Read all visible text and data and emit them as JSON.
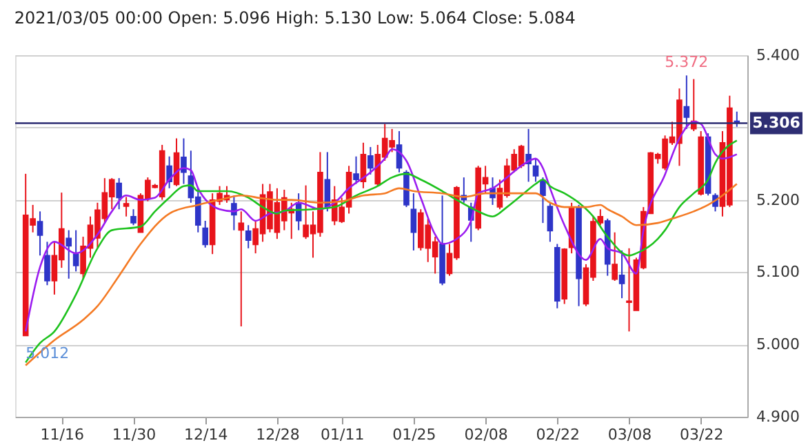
{
  "chart_data": {
    "type": "candlestick",
    "title": "2021/03/05 00:00   Open: 5.096  High: 5.130  Low: 5.064  Close: 5.084",
    "categories": [
      null,
      null,
      null,
      null,
      null,
      "11/16",
      null,
      null,
      null,
      null,
      null,
      null,
      null,
      null,
      null,
      "11/30",
      null,
      null,
      null,
      null,
      null,
      null,
      null,
      null,
      null,
      "12/14",
      null,
      null,
      null,
      null,
      null,
      null,
      null,
      null,
      null,
      "12/28",
      null,
      null,
      null,
      null,
      null,
      null,
      null,
      null,
      "01/11",
      null,
      null,
      null,
      null,
      null,
      null,
      null,
      null,
      null,
      "01/25",
      null,
      null,
      null,
      null,
      null,
      null,
      null,
      null,
      null,
      "02/08",
      null,
      null,
      null,
      null,
      null,
      null,
      null,
      null,
      null,
      "02/22",
      null,
      null,
      null,
      null,
      null,
      null,
      null,
      null,
      null,
      "03/08",
      null,
      null,
      null,
      null,
      null,
      null,
      null,
      null,
      null,
      "03/22",
      null,
      null,
      null,
      null,
      null
    ],
    "ohlc": [
      [
        5.012,
        5.236,
        5.012,
        5.179
      ],
      [
        5.165,
        5.193,
        5.155,
        5.174
      ],
      [
        5.17,
        5.184,
        5.123,
        5.151
      ],
      [
        5.123,
        5.142,
        5.082,
        5.088
      ],
      [
        5.088,
        5.142,
        5.069,
        5.123
      ],
      [
        5.117,
        5.21,
        5.106,
        5.16
      ],
      [
        5.147,
        5.158,
        5.091,
        5.136
      ],
      [
        5.125,
        5.158,
        5.101,
        5.109
      ],
      [
        5.098,
        5.149,
        5.091,
        5.136
      ],
      [
        5.133,
        5.177,
        5.12,
        5.165
      ],
      [
        5.147,
        5.196,
        5.133,
        5.186
      ],
      [
        5.174,
        5.23,
        5.168,
        5.21
      ],
      [
        5.204,
        5.23,
        5.187,
        5.228
      ],
      [
        5.223,
        5.23,
        5.187,
        5.203
      ],
      [
        5.191,
        5.204,
        5.177,
        5.195
      ],
      [
        5.177,
        5.187,
        5.165,
        5.168
      ],
      [
        5.155,
        5.209,
        5.155,
        5.206
      ],
      [
        5.202,
        5.231,
        5.198,
        5.227
      ],
      [
        5.217,
        5.222,
        5.216,
        5.22
      ],
      [
        5.204,
        5.276,
        5.2,
        5.268
      ],
      [
        5.247,
        5.26,
        5.216,
        5.225
      ],
      [
        5.221,
        5.285,
        5.219,
        5.265
      ],
      [
        5.259,
        5.285,
        5.222,
        5.238
      ],
      [
        5.233,
        5.268,
        5.196,
        5.203
      ],
      [
        5.204,
        5.216,
        5.155,
        5.165
      ],
      [
        5.161,
        5.171,
        5.134,
        5.138
      ],
      [
        5.138,
        5.209,
        5.125,
        5.2
      ],
      [
        5.198,
        5.219,
        5.193,
        5.209
      ],
      [
        5.2,
        5.219,
        5.196,
        5.206
      ],
      [
        5.195,
        5.206,
        5.158,
        5.179
      ],
      [
        5.158,
        5.184,
        5.025,
        5.168
      ],
      [
        5.157,
        5.165,
        5.133,
        5.144
      ],
      [
        5.138,
        5.171,
        5.126,
        5.16
      ],
      [
        5.153,
        5.222,
        5.142,
        5.207
      ],
      [
        5.16,
        5.222,
        5.155,
        5.211
      ],
      [
        5.155,
        5.216,
        5.146,
        5.196
      ],
      [
        5.171,
        5.214,
        5.158,
        5.203
      ],
      [
        5.182,
        5.196,
        5.146,
        5.187
      ],
      [
        5.196,
        5.209,
        5.158,
        5.171
      ],
      [
        5.149,
        5.22,
        5.146,
        5.165
      ],
      [
        5.153,
        5.184,
        5.12,
        5.165
      ],
      [
        5.155,
        5.266,
        5.149,
        5.238
      ],
      [
        5.228,
        5.266,
        5.184,
        5.19
      ],
      [
        5.171,
        5.219,
        5.165,
        5.2
      ],
      [
        5.17,
        5.203,
        5.168,
        5.19
      ],
      [
        5.19,
        5.247,
        5.181,
        5.238
      ],
      [
        5.236,
        5.26,
        5.222,
        5.228
      ],
      [
        5.225,
        5.279,
        5.216,
        5.263
      ],
      [
        5.261,
        5.273,
        5.235,
        5.244
      ],
      [
        5.222,
        5.276,
        5.219,
        5.263
      ],
      [
        5.259,
        5.305,
        5.254,
        5.285
      ],
      [
        5.273,
        5.298,
        5.266,
        5.282
      ],
      [
        5.276,
        5.295,
        5.238,
        5.244
      ],
      [
        5.238,
        5.241,
        5.19,
        5.193
      ],
      [
        5.187,
        5.209,
        5.13,
        5.155
      ],
      [
        5.134,
        5.187,
        5.13,
        5.182
      ],
      [
        5.133,
        5.174,
        5.114,
        5.165
      ],
      [
        5.121,
        5.149,
        5.098,
        5.142
      ],
      [
        5.139,
        5.206,
        5.082,
        5.085
      ],
      [
        5.098,
        5.139,
        5.095,
        5.126
      ],
      [
        5.12,
        5.219,
        5.117,
        5.217
      ],
      [
        5.206,
        5.231,
        5.196,
        5.2
      ],
      [
        5.19,
        5.196,
        5.142,
        5.172
      ],
      [
        5.161,
        5.247,
        5.158,
        5.244
      ],
      [
        5.222,
        5.247,
        5.209,
        5.231
      ],
      [
        5.216,
        5.231,
        5.193,
        5.203
      ],
      [
        5.19,
        5.228,
        5.187,
        5.216
      ],
      [
        5.206,
        5.257,
        5.203,
        5.247
      ],
      [
        5.241,
        5.27,
        5.238,
        5.263
      ],
      [
        5.247,
        5.276,
        5.244,
        5.274
      ],
      [
        5.263,
        5.298,
        5.225,
        5.25
      ],
      [
        5.247,
        5.257,
        5.225,
        5.233
      ],
      [
        5.227,
        5.231,
        5.168,
        5.206
      ],
      [
        5.191,
        5.196,
        5.142,
        5.157
      ],
      [
        5.134,
        5.139,
        5.05,
        5.06
      ],
      [
        5.063,
        5.133,
        5.056,
        5.132
      ],
      [
        5.134,
        5.196,
        5.126,
        5.19
      ],
      [
        5.19,
        5.193,
        5.053,
        5.091
      ],
      [
        5.056,
        5.111,
        5.053,
        5.106
      ],
      [
        5.093,
        5.177,
        5.088,
        5.17
      ],
      [
        5.168,
        5.187,
        5.165,
        5.177
      ],
      [
        5.171,
        5.174,
        5.095,
        5.111
      ],
      [
        5.09,
        5.155,
        5.088,
        5.111
      ],
      [
        5.096,
        5.13,
        5.064,
        5.084
      ],
      [
        5.058,
        5.133,
        5.018,
        5.06
      ],
      [
        5.047,
        5.12,
        5.047,
        5.117
      ],
      [
        5.106,
        5.19,
        5.104,
        5.184
      ],
      [
        5.181,
        5.266,
        5.181,
        5.265
      ],
      [
        5.257,
        5.265,
        5.25,
        5.263
      ],
      [
        5.244,
        5.289,
        5.241,
        5.284
      ],
      [
        5.279,
        5.308,
        5.276,
        5.287
      ],
      [
        5.278,
        5.354,
        5.247,
        5.338
      ],
      [
        5.329,
        5.372,
        5.298,
        5.314
      ],
      [
        5.298,
        5.367,
        5.295,
        5.309
      ],
      [
        5.208,
        5.295,
        5.206,
        5.287
      ],
      [
        5.287,
        5.292,
        5.206,
        5.209
      ],
      [
        5.206,
        5.209,
        5.184,
        5.191
      ],
      [
        5.191,
        5.295,
        5.177,
        5.279
      ],
      [
        5.193,
        5.344,
        5.19,
        5.327
      ],
      [
        5.309,
        5.322,
        5.301,
        5.306
      ]
    ],
    "colors": [
      "#e8141b",
      "#e8141b",
      "#2e35c8",
      "#2e35c8",
      "#e8141b",
      "#e8141b",
      "#2e35c8",
      "#2e35c8",
      "#e8141b",
      "#e8141b",
      "#e8141b",
      "#e8141b",
      "#e8141b",
      "#2e35c8",
      "#e8141b",
      "#2e35c8",
      "#e8141b",
      "#e8141b",
      "#e8141b",
      "#e8141b",
      "#2e35c8",
      "#e8141b",
      "#2e35c8",
      "#2e35c8",
      "#2e35c8",
      "#2e35c8",
      "#e8141b",
      "#e8141b",
      "#e8141b",
      "#2e35c8",
      "#e8141b",
      "#2e35c8",
      "#e8141b",
      "#e8141b",
      "#e8141b",
      "#e8141b",
      "#e8141b",
      "#e8141b",
      "#2e35c8",
      "#e8141b",
      "#e8141b",
      "#e8141b",
      "#2e35c8",
      "#e8141b",
      "#e8141b",
      "#e8141b",
      "#2e35c8",
      "#e8141b",
      "#2e35c8",
      "#e8141b",
      "#e8141b",
      "#e8141b",
      "#2e35c8",
      "#2e35c8",
      "#2e35c8",
      "#e8141b",
      "#e8141b",
      "#e8141b",
      "#2e35c8",
      "#e8141b",
      "#e8141b",
      "#2e35c8",
      "#2e35c8",
      "#e8141b",
      "#e8141b",
      "#2e35c8",
      "#e8141b",
      "#e8141b",
      "#e8141b",
      "#e8141b",
      "#2e35c8",
      "#2e35c8",
      "#2e35c8",
      "#2e35c8",
      "#2e35c8",
      "#e8141b",
      "#e8141b",
      "#2e35c8",
      "#e8141b",
      "#e8141b",
      "#e8141b",
      "#2e35c8",
      "#e8141b",
      "#2e35c8",
      "#e8141b",
      "#e8141b",
      "#e8141b",
      "#e8141b",
      "#e8141b",
      "#e8141b",
      "#e8141b",
      "#e8141b",
      "#2e35c8",
      "#e8141b",
      "#e8141b",
      "#2e35c8",
      "#2e35c8",
      "#e8141b",
      "#e8141b",
      "#2e35c8"
    ],
    "series": [
      {
        "type": "line",
        "color": "#9b1cf0",
        "values": [
          5.018,
          null,
          5.107,
          null,
          5.142,
          null,
          null,
          5.126,
          null,
          null,
          5.152,
          null,
          5.184,
          null,
          5.206,
          null,
          5.2,
          null,
          5.203,
          null,
          5.228,
          null,
          5.244,
          5.241,
          5.216,
          null,
          null,
          5.187,
          null,
          5.184,
          5.187,
          null,
          5.171,
          null,
          5.181,
          null,
          5.184,
          null,
          5.196,
          null,
          null,
          5.187,
          null,
          5.196,
          null,
          5.216,
          null,
          null,
          5.238,
          null,
          5.257,
          5.27,
          null,
          5.254,
          null,
          5.203,
          null,
          5.152,
          5.139,
          null,
          5.146,
          null,
          5.171,
          5.209,
          null,
          5.216,
          null,
          5.231,
          null,
          5.247,
          null,
          5.257,
          5.244,
          5.216,
          null,
          5.165,
          null,
          null,
          5.117,
          null,
          5.146,
          5.133,
          null,
          5.126,
          null,
          5.098,
          5.158,
          null,
          null,
          5.235,
          null,
          5.285,
          null,
          5.308,
          5.305,
          null,
          5.263,
          5.257,
          null,
          5.263
        ]
      },
      {
        "type": "line",
        "color": "#1ec21e",
        "values": [
          4.975,
          null,
          5.002,
          null,
          5.018,
          null,
          null,
          5.069,
          null,
          null,
          5.133,
          null,
          5.158,
          null,
          null,
          null,
          5.163,
          null,
          5.184,
          null,
          5.203,
          null,
          5.219,
          5.22,
          5.212,
          null,
          null,
          5.212,
          5.212,
          null,
          null,
          5.203,
          null,
          5.19,
          null,
          5.181,
          5.185,
          null,
          null,
          null,
          5.187,
          null,
          null,
          5.19,
          null,
          null,
          5.206,
          null,
          null,
          5.219,
          null,
          5.231,
          null,
          5.236,
          null,
          5.228,
          null,
          null,
          5.212,
          null,
          5.2,
          null,
          null,
          5.184,
          null,
          5.177,
          null,
          5.19,
          null,
          5.206,
          null,
          5.222,
          5.228,
          5.219,
          null,
          5.209,
          null,
          5.196,
          null,
          5.177,
          null,
          5.149,
          null,
          null,
          5.123,
          5.126,
          null,
          null,
          5.146,
          5.158,
          null,
          5.19,
          null,
          5.209,
          null,
          5.228,
          5.251,
          null,
          null,
          5.282
        ]
      },
      {
        "type": "line",
        "color": "#f47a24",
        "values": [
          4.971,
          null,
          null,
          null,
          5.006,
          null,
          null,
          null,
          5.034,
          null,
          5.053,
          null,
          null,
          5.095,
          null,
          null,
          5.139,
          null,
          null,
          null,
          5.181,
          null,
          null,
          null,
          5.193,
          null,
          null,
          5.2,
          null,
          null,
          5.206,
          null,
          null,
          5.202,
          null,
          5.2,
          null,
          5.2,
          null,
          null,
          null,
          5.196,
          null,
          null,
          5.198,
          null,
          null,
          5.206,
          null,
          null,
          5.209,
          null,
          5.216,
          null,
          5.212,
          null,
          null,
          null,
          5.209,
          null,
          null,
          5.204,
          null,
          null,
          5.209,
          null,
          null,
          null,
          5.209,
          null,
          null,
          5.209,
          null,
          5.196,
          null,
          5.19,
          null,
          null,
          5.19,
          null,
          5.193,
          5.187,
          null,
          5.177,
          null,
          5.165,
          null,
          null,
          5.168,
          null,
          5.174,
          null,
          null,
          5.184,
          null,
          5.193,
          null,
          5.206,
          null,
          5.222
        ]
      }
    ],
    "ylim": [
      4.9,
      5.4
    ],
    "yticks": [
      {
        "value": 4.9,
        "label": "4.900"
      },
      {
        "value": 5.0,
        "label": "5.000"
      },
      {
        "value": 5.1,
        "label": "5.100"
      },
      {
        "value": 5.2,
        "label": "5.200"
      },
      {
        "value": 5.3,
        "label": null
      },
      {
        "value": 5.4,
        "label": "5.400"
      }
    ],
    "grid": "y",
    "tick_labels": "xy",
    "ref_lines": [
      {
        "axis": "y",
        "value": 5.306,
        "label": "5.306",
        "color": "#2e2e73"
      }
    ],
    "annotations": [
      {
        "text": "5.372",
        "y": 5.372
      },
      {
        "text": "5.012",
        "y": 5.012
      }
    ]
  }
}
